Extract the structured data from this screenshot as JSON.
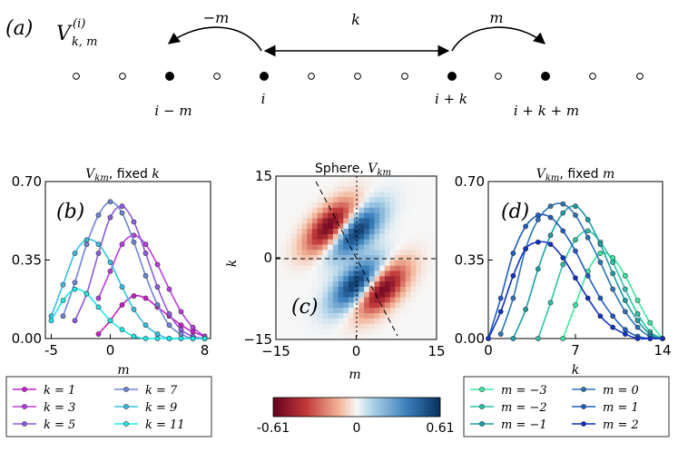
{
  "panel_a": {
    "label": "(a)",
    "formula_main": "V",
    "formula_sup": "(i)",
    "formula_sub": "k, m",
    "arrow_left_label": "−m",
    "arrow_mid_label": "k",
    "arrow_right_label": "m",
    "site_labels": [
      "i − m",
      "i",
      "i + k",
      "i + k + m"
    ]
  },
  "colorbar": {
    "min_label": "-0.61",
    "mid_label": "0",
    "max_label": "0.61",
    "min": -0.61,
    "max": 0.61
  },
  "legend_b": [
    {
      "label": "k = 1",
      "color": "#c71fc7"
    },
    {
      "label": "k = 3",
      "color": "#b83ee0"
    },
    {
      "label": "k = 5",
      "color": "#8e5cde"
    },
    {
      "label": "k = 7",
      "color": "#6e86d8"
    },
    {
      "label": "k = 9",
      "color": "#36bfe3"
    },
    {
      "label": "k = 11",
      "color": "#1ee8e8"
    }
  ],
  "legend_d": [
    {
      "label": "m = −3",
      "color": "#3ce8a0"
    },
    {
      "label": "m = −2",
      "color": "#2cc3a6"
    },
    {
      "label": "m = −1",
      "color": "#1d9ea6"
    },
    {
      "label": "m = 0",
      "color": "#2b74b8"
    },
    {
      "label": "m = 1",
      "color": "#1f5cc4"
    },
    {
      "label": "m = 2",
      "color": "#1030c8"
    }
  ],
  "chart_data": [
    {
      "type": "line",
      "panel": "(b)",
      "title": "V_km, fixed k",
      "xlabel": "m",
      "ylabel": "",
      "xlim": [
        -5.5,
        8.5
      ],
      "ylim": [
        0,
        0.7
      ],
      "xticks": [
        "-5",
        "0",
        "8"
      ],
      "yticks": [
        "0.00",
        "0.35",
        "0.70"
      ],
      "series": [
        {
          "name": "k = 1",
          "x": [
            -1,
            0,
            1,
            2,
            3,
            4,
            5,
            6,
            7,
            8
          ],
          "y": [
            0.02,
            0.08,
            0.15,
            0.19,
            0.18,
            0.14,
            0.1,
            0.06,
            0.03,
            0.01
          ]
        },
        {
          "name": "k = 3",
          "x": [
            -1,
            0,
            1,
            2,
            3,
            4,
            5,
            6,
            7,
            8
          ],
          "y": [
            0.18,
            0.3,
            0.42,
            0.46,
            0.42,
            0.33,
            0.22,
            0.12,
            0.05,
            0.01
          ]
        },
        {
          "name": "k = 5",
          "x": [
            -3,
            -2,
            -1,
            0,
            1,
            2,
            3,
            4,
            5,
            6,
            7,
            8
          ],
          "y": [
            0.08,
            0.2,
            0.38,
            0.54,
            0.59,
            0.52,
            0.38,
            0.23,
            0.11,
            0.04,
            0.01,
            0.0
          ]
        },
        {
          "name": "k = 7",
          "x": [
            -4,
            -3,
            -2,
            -1,
            0,
            1,
            2,
            3,
            4,
            5,
            6,
            7,
            8
          ],
          "y": [
            0.1,
            0.25,
            0.42,
            0.55,
            0.61,
            0.56,
            0.43,
            0.28,
            0.15,
            0.06,
            0.02,
            0.0,
            0.0
          ]
        },
        {
          "name": "k = 9",
          "x": [
            -5,
            -4,
            -3,
            -2,
            -1,
            0,
            1,
            2,
            3,
            4,
            5,
            6,
            7,
            8
          ],
          "y": [
            0.1,
            0.24,
            0.38,
            0.44,
            0.42,
            0.34,
            0.23,
            0.13,
            0.06,
            0.02,
            0.0,
            0.0,
            0.0,
            0.0
          ]
        },
        {
          "name": "k = 11",
          "x": [
            -5,
            -4,
            -3,
            -2,
            -1,
            0,
            1,
            2,
            3,
            4,
            5,
            6,
            7,
            8
          ],
          "y": [
            0.08,
            0.17,
            0.22,
            0.2,
            0.14,
            0.08,
            0.04,
            0.01,
            0.0,
            0.0,
            0.0,
            0.0,
            0.0,
            0.0
          ]
        }
      ]
    },
    {
      "type": "heatmap",
      "panel": "(c)",
      "title": "Sphere, V_km",
      "xlabel": "m",
      "ylabel": "k",
      "xlim": [
        -15,
        15
      ],
      "ylim": [
        -15,
        15
      ],
      "xticks": [
        "−15",
        "0",
        "15"
      ],
      "yticks": [
        "15",
        "0",
        "−15"
      ],
      "value_range": [
        -0.61,
        0.61
      ],
      "lobes": [
        {
          "center_m": -5,
          "center_k": 6,
          "value": -0.61
        },
        {
          "center_m": 0,
          "center_k": 5,
          "value": 0.61
        },
        {
          "center_m": 0,
          "center_k": -5,
          "value": 0.61
        },
        {
          "center_m": 5,
          "center_k": -6,
          "value": -0.61
        }
      ]
    },
    {
      "type": "line",
      "panel": "(d)",
      "title": "V_km, fixed m",
      "xlabel": "k",
      "ylabel": "",
      "xlim": [
        0,
        14
      ],
      "ylim": [
        0,
        0.7
      ],
      "xticks": [
        "0",
        "7",
        "14"
      ],
      "yticks": [
        "0.00",
        "0.35",
        "0.70"
      ],
      "series": [
        {
          "name": "m = −3",
          "x": [
            6,
            7,
            8,
            9,
            10,
            11,
            12,
            13,
            14
          ],
          "y": [
            0.0,
            0.15,
            0.3,
            0.38,
            0.36,
            0.28,
            0.17,
            0.07,
            0.0
          ]
        },
        {
          "name": "m = −2",
          "x": [
            4,
            5,
            6,
            7,
            8,
            9,
            10,
            11,
            12,
            13,
            14
          ],
          "y": [
            0.0,
            0.16,
            0.33,
            0.44,
            0.48,
            0.43,
            0.34,
            0.22,
            0.11,
            0.03,
            0.0
          ]
        },
        {
          "name": "m = −1",
          "x": [
            2,
            3,
            4,
            5,
            6,
            7,
            8,
            9,
            10,
            11,
            12,
            13,
            14
          ],
          "y": [
            0.0,
            0.13,
            0.31,
            0.46,
            0.56,
            0.59,
            0.53,
            0.42,
            0.29,
            0.17,
            0.08,
            0.02,
            0.0
          ]
        },
        {
          "name": "m = 0",
          "x": [
            1,
            2,
            3,
            4,
            5,
            6,
            7,
            8,
            9,
            10,
            11,
            12,
            13,
            14
          ],
          "y": [
            0.02,
            0.18,
            0.4,
            0.53,
            0.59,
            0.6,
            0.55,
            0.45,
            0.34,
            0.22,
            0.12,
            0.05,
            0.01,
            0.0
          ]
        },
        {
          "name": "m = 1",
          "x": [
            0,
            1,
            2,
            3,
            4,
            5,
            6,
            7,
            8,
            9,
            10,
            11,
            12,
            13,
            14
          ],
          "y": [
            0.0,
            0.18,
            0.38,
            0.5,
            0.55,
            0.54,
            0.48,
            0.39,
            0.28,
            0.18,
            0.1,
            0.04,
            0.01,
            0.0,
            0.0
          ]
        },
        {
          "name": "m = 2",
          "x": [
            0,
            1,
            2,
            3,
            4,
            5,
            6,
            7,
            8,
            9,
            10,
            11,
            12,
            13,
            14
          ],
          "y": [
            0.0,
            0.12,
            0.28,
            0.4,
            0.43,
            0.42,
            0.36,
            0.27,
            0.18,
            0.1,
            0.05,
            0.02,
            0.0,
            0.0,
            0.0
          ]
        }
      ]
    }
  ]
}
